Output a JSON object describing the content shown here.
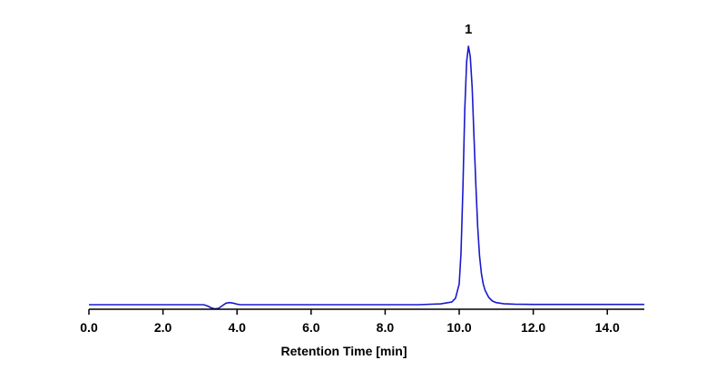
{
  "chart_data": {
    "type": "line",
    "title": "",
    "xlabel": "Retention Time [min]",
    "ylabel": "",
    "xlim": [
      0,
      15
    ],
    "ylim": [
      -0.02,
      1.0
    ],
    "xticks": [
      0,
      2,
      4,
      6,
      8,
      10,
      12,
      14
    ],
    "xtick_labels": [
      "0.0",
      "2.0",
      "4.0",
      "6.0",
      "8.0",
      "10.0",
      "12.0",
      "14.0"
    ],
    "grid": false,
    "legend": "none",
    "line_color": "#1a1acc",
    "series": [
      {
        "x": [
          0.0,
          3.1,
          3.2,
          3.3,
          3.4,
          3.5,
          3.6,
          3.7,
          3.8,
          3.9,
          4.0,
          4.1,
          8.9,
          9.5,
          9.8,
          9.9,
          10.0,
          10.05,
          10.1,
          10.15,
          10.2,
          10.25,
          10.3,
          10.35,
          10.4,
          10.45,
          10.5,
          10.55,
          10.6,
          10.65,
          10.7,
          10.8,
          10.9,
          11.0,
          11.2,
          11.5,
          12.0,
          15.0
        ],
        "y": [
          0.0,
          0.0,
          -0.005,
          -0.012,
          -0.016,
          -0.014,
          -0.004,
          0.006,
          0.008,
          0.006,
          0.002,
          0.0,
          0.0,
          0.003,
          0.01,
          0.025,
          0.08,
          0.2,
          0.45,
          0.75,
          0.94,
          1.0,
          0.96,
          0.84,
          0.65,
          0.46,
          0.3,
          0.19,
          0.12,
          0.08,
          0.055,
          0.028,
          0.014,
          0.008,
          0.004,
          0.002,
          0.001,
          0.001
        ]
      }
    ],
    "annotations": [
      {
        "text": "1",
        "x": 10.25,
        "y": 1.0
      }
    ]
  }
}
